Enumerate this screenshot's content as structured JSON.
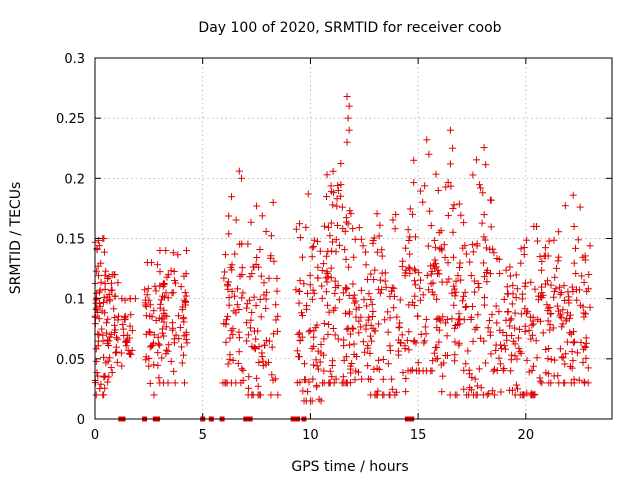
{
  "chart_data": {
    "type": "scatter",
    "title": "Day 100 of 2020, SRMTID for receiver coob",
    "xlabel": "GPS time / hours",
    "ylabel": "SRMTID / TECUs",
    "xlim": [
      0,
      24
    ],
    "ylim": [
      0,
      0.3
    ],
    "xticks": [
      0,
      5,
      10,
      15,
      20
    ],
    "xtick_labels": [
      "0",
      "5",
      "10",
      "15",
      "20"
    ],
    "yticks": [
      0,
      0.05,
      0.1,
      0.15,
      0.2,
      0.25,
      0.3
    ],
    "ytick_labels": [
      "0",
      "0.05",
      "0.1",
      "0.15",
      "0.2",
      "0.25",
      "0.3"
    ],
    "grid": true,
    "marker": "plus",
    "series_color": "#e00000",
    "zero_markers_x": [
      1.2,
      1.3,
      2.3,
      2.8,
      2.9,
      5.0,
      5.4,
      5.9,
      7.0,
      7.2,
      9.2,
      9.4,
      9.7,
      14.5,
      14.7
    ],
    "clusters": [
      {
        "x": [
          0.0,
          0.6
        ],
        "y": [
          0.02,
          0.15
        ],
        "n": 70,
        "center": 0.08
      },
      {
        "x": [
          0.6,
          1.1
        ],
        "y": [
          0.03,
          0.12
        ],
        "n": 35,
        "center": 0.08
      },
      {
        "x": [
          1.2,
          1.9
        ],
        "y": [
          0.04,
          0.1
        ],
        "n": 30,
        "center": 0.07
      },
      {
        "x": [
          2.3,
          3.0
        ],
        "y": [
          0.02,
          0.13
        ],
        "n": 40,
        "center": 0.08
      },
      {
        "x": [
          3.0,
          4.3
        ],
        "y": [
          0.03,
          0.14
        ],
        "n": 80,
        "center": 0.085
      },
      {
        "x": [
          5.9,
          6.9
        ],
        "y": [
          0.03,
          0.21
        ],
        "n": 60,
        "center": 0.09
      },
      {
        "x": [
          7.0,
          8.5
        ],
        "y": [
          0.02,
          0.18
        ],
        "n": 80,
        "center": 0.075
      },
      {
        "x": [
          9.3,
          10.5
        ],
        "y": [
          0.015,
          0.18
        ],
        "n": 70,
        "center": 0.08
      },
      {
        "x": [
          10.5,
          12.0
        ],
        "y": [
          0.03,
          0.27
        ],
        "n": 110,
        "center": 0.11
      },
      {
        "x": [
          12.0,
          14.5
        ],
        "y": [
          0.02,
          0.19
        ],
        "n": 130,
        "center": 0.09
      },
      {
        "x": [
          14.5,
          16.0
        ],
        "y": [
          0.04,
          0.23
        ],
        "n": 90,
        "center": 0.1
      },
      {
        "x": [
          16.0,
          18.5
        ],
        "y": [
          0.02,
          0.24
        ],
        "n": 140,
        "center": 0.09
      },
      {
        "x": [
          18.5,
          20.5
        ],
        "y": [
          0.02,
          0.16
        ],
        "n": 110,
        "center": 0.07
      },
      {
        "x": [
          20.5,
          23.0
        ],
        "y": [
          0.03,
          0.19
        ],
        "n": 140,
        "center": 0.085
      }
    ],
    "peaks": [
      {
        "x": 11.7,
        "y": 0.268
      },
      {
        "x": 11.8,
        "y": 0.26
      },
      {
        "x": 11.75,
        "y": 0.25
      },
      {
        "x": 11.8,
        "y": 0.24
      },
      {
        "x": 11.7,
        "y": 0.23
      },
      {
        "x": 16.5,
        "y": 0.24
      },
      {
        "x": 15.4,
        "y": 0.232
      },
      {
        "x": 16.6,
        "y": 0.225
      },
      {
        "x": 15.5,
        "y": 0.22
      },
      {
        "x": 16.5,
        "y": 0.212
      },
      {
        "x": 6.7,
        "y": 0.206
      },
      {
        "x": 6.8,
        "y": 0.2
      },
      {
        "x": 14.8,
        "y": 0.215
      },
      {
        "x": 17.9,
        "y": 0.192
      },
      {
        "x": 18.0,
        "y": 0.188
      },
      {
        "x": 22.2,
        "y": 0.186
      },
      {
        "x": 9.9,
        "y": 0.187
      },
      {
        "x": 7.5,
        "y": 0.177
      },
      {
        "x": 4.0,
        "y": 0.11
      },
      {
        "x": 10.0,
        "y": 0.015
      }
    ]
  }
}
